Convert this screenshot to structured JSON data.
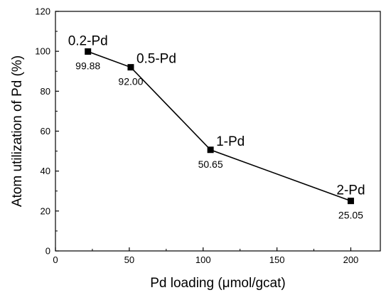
{
  "chart_data": {
    "type": "line",
    "title": "",
    "xlabel": "Pd loading (μmol/gcat)",
    "ylabel": "Atom utilization of Pd (%)",
    "xlim": [
      0,
      220
    ],
    "ylim": [
      0,
      120
    ],
    "x_ticks": [
      "0",
      "50",
      "100",
      "150",
      "200"
    ],
    "y_ticks": [
      "0",
      "20",
      "40",
      "60",
      "80",
      "100",
      "120"
    ],
    "grid": false,
    "legend": "none",
    "series": [
      {
        "color": "#000000",
        "marker": "square",
        "points": [
          {
            "x": 22,
            "y": 99.88,
            "label": "0.2-Pd",
            "value_label": "99.88",
            "label_pos": "above",
            "value_pos": "below"
          },
          {
            "x": 51,
            "y": 92.0,
            "label": "0.5-Pd",
            "value_label": "92.00",
            "label_pos": "above-right",
            "value_pos": "below"
          },
          {
            "x": 105,
            "y": 50.65,
            "label": "1-Pd",
            "value_label": "50.65",
            "label_pos": "above-right",
            "value_pos": "below"
          },
          {
            "x": 200,
            "y": 25.05,
            "label": "2-Pd",
            "value_label": "25.05",
            "label_pos": "above",
            "value_pos": "below"
          }
        ]
      }
    ]
  }
}
